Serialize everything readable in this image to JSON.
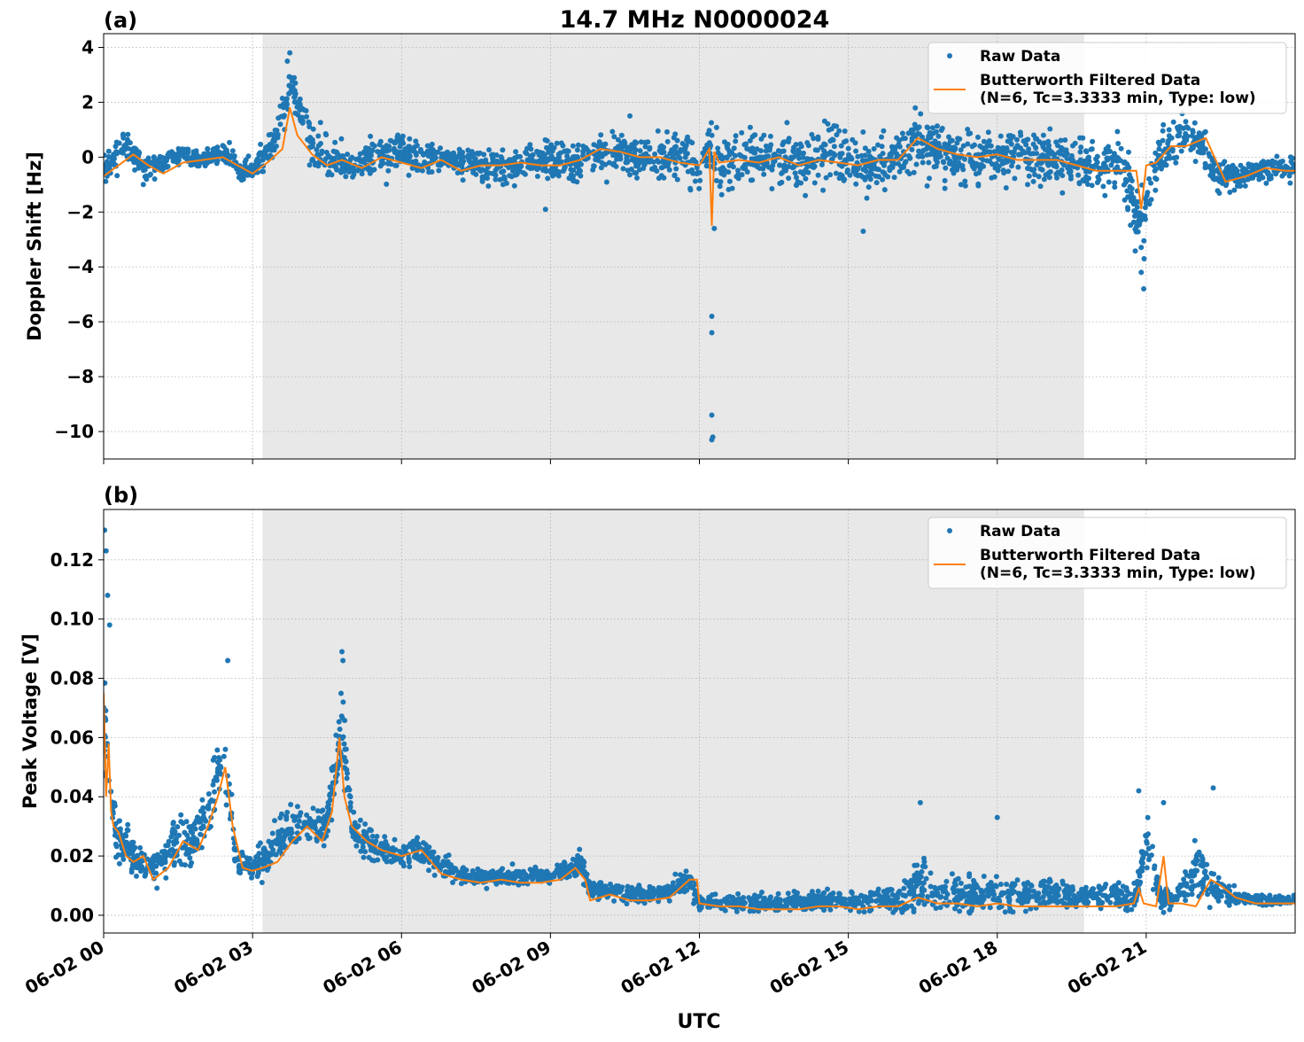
{
  "figure": {
    "title": "14.7 MHz N0000024",
    "xlabel": "UTC"
  },
  "colors": {
    "raw": "#1f77b4",
    "filtered": "#ff7f0e",
    "night_shade": "#e8e8e8",
    "grid": "#b0b0b0"
  },
  "chart_data": [
    {
      "type": "scatter",
      "panel_label": "(a)",
      "ylabel": "Doppler Shift [Hz]",
      "xlim": [
        0,
        24
      ],
      "ylim": [
        -11,
        4.5
      ],
      "yticks": [
        4,
        2,
        0,
        -2,
        -4,
        -6,
        -8,
        -10
      ],
      "ytick_labels": [
        "4",
        "2",
        "0",
        "−2",
        "−4",
        "−6",
        "−8",
        "−10"
      ],
      "xticks": [
        0,
        3,
        6,
        9,
        12,
        15,
        18,
        21
      ],
      "xtick_labels": [
        "06-02 00",
        "06-02 03",
        "06-02 06",
        "06-02 09",
        "06-02 12",
        "06-02 15",
        "06-02 18",
        "06-02 21"
      ],
      "shaded_interval_hours": [
        3.2,
        19.75
      ],
      "grid": true,
      "legend_position": "top-right",
      "series": [
        {
          "name": "Raw Data",
          "style": "points",
          "x": [
            0,
            0.4,
            0.8,
            1.2,
            1.6,
            2.0,
            2.4,
            2.8,
            3.0,
            3.4,
            3.8,
            4.2,
            4.6,
            5.0,
            5.5,
            6.0,
            6.5,
            7.0,
            7.5,
            8.0,
            8.5,
            9.0,
            9.5,
            10.0,
            10.5,
            11.0,
            11.5,
            12.0,
            12.2,
            12.5,
            13.0,
            13.5,
            14.0,
            14.5,
            15.0,
            15.5,
            16.0,
            16.4,
            17.0,
            17.5,
            18.0,
            18.5,
            19.0,
            19.5,
            20.0,
            20.5,
            20.9,
            21.2,
            21.6,
            22.0,
            22.4,
            22.8,
            23.2,
            23.6,
            24.0
          ],
          "y": [
            -0.6,
            0.6,
            -0.4,
            -0.2,
            0.1,
            -0.1,
            0.2,
            -0.6,
            -0.4,
            0.4,
            2.6,
            0.4,
            -0.1,
            -0.3,
            0.0,
            0.2,
            -0.2,
            -0.1,
            -0.3,
            -0.4,
            -0.2,
            -0.1,
            -0.3,
            0.2,
            0.1,
            -0.1,
            0.1,
            -0.2,
            0.2,
            -0.3,
            0.0,
            -0.1,
            -0.2,
            0.1,
            -0.1,
            -0.2,
            0.0,
            0.6,
            0.1,
            0.0,
            -0.1,
            0.1,
            0.0,
            -0.2,
            -0.4,
            -0.3,
            -2.5,
            -0.2,
            0.7,
            0.6,
            -0.6,
            -0.7,
            -0.5,
            -0.4,
            -0.5
          ],
          "spread": [
            0.5,
            0.6,
            0.4,
            0.4,
            0.4,
            0.3,
            0.4,
            0.5,
            0.5,
            0.7,
            1.0,
            0.8,
            0.7,
            0.7,
            0.7,
            0.7,
            0.6,
            0.6,
            0.6,
            0.7,
            0.7,
            0.7,
            0.7,
            0.8,
            0.8,
            0.8,
            0.9,
            1.0,
            1.0,
            1.0,
            1.0,
            1.0,
            1.0,
            1.0,
            1.0,
            1.0,
            1.0,
            1.0,
            1.0,
            1.0,
            1.0,
            1.0,
            1.0,
            1.0,
            1.0,
            1.0,
            1.5,
            0.9,
            0.9,
            0.8,
            0.6,
            0.5,
            0.5,
            0.5,
            0.5
          ],
          "outliers": [
            {
              "x": 3.75,
              "y": 3.8
            },
            {
              "x": 3.7,
              "y": 3.5
            },
            {
              "x": 20.95,
              "y": -4.8
            },
            {
              "x": 20.9,
              "y": -4.2
            },
            {
              "x": 12.25,
              "y": -5.8
            },
            {
              "x": 12.25,
              "y": -6.4
            },
            {
              "x": 12.25,
              "y": -9.4
            },
            {
              "x": 12.27,
              "y": -10.2
            },
            {
              "x": 12.25,
              "y": -10.3
            },
            {
              "x": 12.3,
              "y": -2.6
            },
            {
              "x": 15.3,
              "y": -2.7
            },
            {
              "x": 8.9,
              "y": -1.9
            },
            {
              "x": 10.6,
              "y": 1.5
            },
            {
              "x": 21.5,
              "y": 2.3
            }
          ]
        },
        {
          "name": "Butterworth Filtered Data\n(N=6, Tc=3.3333 min, Type: low)",
          "style": "line",
          "x": [
            0,
            0.3,
            0.6,
            0.9,
            1.2,
            1.6,
            2.0,
            2.4,
            2.8,
            3.0,
            3.3,
            3.6,
            3.75,
            3.9,
            4.2,
            4.5,
            4.8,
            5.2,
            5.6,
            6.0,
            6.4,
            6.8,
            7.2,
            7.6,
            8.0,
            8.4,
            8.8,
            9.2,
            9.6,
            10.0,
            10.4,
            10.8,
            11.2,
            11.6,
            12.0,
            12.2,
            12.25,
            12.3,
            12.4,
            12.8,
            13.2,
            13.6,
            14.0,
            14.4,
            14.8,
            15.2,
            15.6,
            16.0,
            16.4,
            16.8,
            17.2,
            17.6,
            18.0,
            18.4,
            18.8,
            19.2,
            19.6,
            20.0,
            20.4,
            20.8,
            20.9,
            21.0,
            21.2,
            21.5,
            21.8,
            22.2,
            22.6,
            23.0,
            23.4,
            23.8,
            24.0
          ],
          "y": [
            -0.7,
            -0.3,
            0.1,
            -0.3,
            -0.6,
            -0.2,
            -0.1,
            0.0,
            -0.4,
            -0.6,
            -0.2,
            0.3,
            1.8,
            0.8,
            0.1,
            -0.3,
            -0.1,
            -0.4,
            0.0,
            -0.2,
            -0.4,
            -0.1,
            -0.5,
            -0.3,
            -0.3,
            -0.2,
            -0.3,
            -0.3,
            -0.1,
            0.3,
            0.2,
            0.0,
            0.0,
            -0.2,
            -0.3,
            0.3,
            -2.5,
            0.2,
            -0.2,
            -0.1,
            -0.2,
            0.0,
            -0.3,
            -0.1,
            -0.2,
            -0.3,
            -0.1,
            -0.1,
            0.7,
            0.3,
            0.1,
            0.0,
            0.1,
            -0.1,
            -0.1,
            -0.1,
            -0.3,
            -0.5,
            -0.5,
            -0.5,
            -1.9,
            -0.3,
            -0.2,
            0.4,
            0.4,
            0.7,
            -0.9,
            -0.7,
            -0.4,
            -0.5,
            -0.5
          ]
        }
      ]
    },
    {
      "type": "scatter",
      "panel_label": "(b)",
      "ylabel": "Peak Voltage [V]",
      "xlim": [
        0,
        24
      ],
      "ylim": [
        -0.006,
        0.137
      ],
      "yticks": [
        0.12,
        0.1,
        0.08,
        0.06,
        0.04,
        0.02,
        0.0
      ],
      "ytick_labels": [
        "0.12",
        "0.10",
        "0.08",
        "0.06",
        "0.04",
        "0.02",
        "0.00"
      ],
      "xticks": [
        0,
        3,
        6,
        9,
        12,
        15,
        18,
        21
      ],
      "xtick_labels": [
        "06-02 00",
        "06-02 03",
        "06-02 06",
        "06-02 09",
        "06-02 12",
        "06-02 15",
        "06-02 18",
        "06-02 21"
      ],
      "shaded_interval_hours": [
        3.2,
        19.75
      ],
      "grid": true,
      "legend_position": "top-right",
      "series": [
        {
          "name": "Raw Data",
          "style": "points",
          "x": [
            0,
            0.15,
            0.3,
            0.6,
            0.9,
            1.2,
            1.5,
            1.8,
            2.1,
            2.4,
            2.7,
            3.0,
            3.3,
            3.6,
            3.9,
            4.2,
            4.5,
            4.8,
            5.0,
            5.3,
            5.7,
            6.0,
            6.4,
            6.8,
            7.2,
            7.6,
            8.0,
            8.4,
            8.8,
            9.2,
            9.6,
            9.8,
            10.2,
            10.6,
            11.0,
            11.4,
            11.8,
            12.0,
            12.4,
            12.8,
            13.2,
            13.6,
            14.0,
            14.4,
            14.8,
            15.2,
            15.6,
            16.0,
            16.4,
            16.8,
            17.2,
            17.6,
            18.0,
            18.4,
            18.8,
            19.2,
            19.6,
            20.0,
            20.4,
            20.8,
            21.0,
            21.3,
            21.6,
            22.0,
            22.4,
            22.8,
            23.2,
            23.6,
            24.0
          ],
          "y": [
            0.07,
            0.035,
            0.026,
            0.02,
            0.016,
            0.02,
            0.026,
            0.025,
            0.033,
            0.055,
            0.018,
            0.016,
            0.02,
            0.028,
            0.03,
            0.03,
            0.03,
            0.065,
            0.03,
            0.025,
            0.022,
            0.02,
            0.022,
            0.017,
            0.014,
            0.013,
            0.013,
            0.013,
            0.013,
            0.014,
            0.018,
            0.008,
            0.008,
            0.007,
            0.007,
            0.008,
            0.012,
            0.004,
            0.004,
            0.004,
            0.004,
            0.004,
            0.004,
            0.005,
            0.005,
            0.005,
            0.006,
            0.005,
            0.012,
            0.007,
            0.007,
            0.007,
            0.007,
            0.007,
            0.007,
            0.007,
            0.006,
            0.006,
            0.007,
            0.006,
            0.025,
            0.006,
            0.006,
            0.015,
            0.008,
            0.006,
            0.005,
            0.005,
            0.005
          ],
          "spread": [
            0.02,
            0.012,
            0.008,
            0.006,
            0.005,
            0.008,
            0.009,
            0.009,
            0.01,
            0.015,
            0.005,
            0.005,
            0.007,
            0.008,
            0.008,
            0.008,
            0.008,
            0.015,
            0.008,
            0.006,
            0.005,
            0.005,
            0.005,
            0.004,
            0.003,
            0.003,
            0.003,
            0.003,
            0.003,
            0.003,
            0.004,
            0.003,
            0.003,
            0.003,
            0.003,
            0.003,
            0.004,
            0.003,
            0.003,
            0.003,
            0.003,
            0.003,
            0.003,
            0.003,
            0.003,
            0.003,
            0.004,
            0.004,
            0.01,
            0.006,
            0.006,
            0.006,
            0.006,
            0.006,
            0.005,
            0.005,
            0.004,
            0.004,
            0.005,
            0.004,
            0.01,
            0.004,
            0.004,
            0.01,
            0.005,
            0.003,
            0.002,
            0.002,
            0.002
          ],
          "outliers": [
            {
              "x": 0.02,
              "y": 0.13
            },
            {
              "x": 0.05,
              "y": 0.123
            },
            {
              "x": 0.08,
              "y": 0.108
            },
            {
              "x": 0.12,
              "y": 0.098
            },
            {
              "x": 2.5,
              "y": 0.086
            },
            {
              "x": 4.8,
              "y": 0.089
            },
            {
              "x": 4.82,
              "y": 0.086
            },
            {
              "x": 16.45,
              "y": 0.038
            },
            {
              "x": 18.0,
              "y": 0.033
            },
            {
              "x": 20.85,
              "y": 0.042
            },
            {
              "x": 21.35,
              "y": 0.038
            },
            {
              "x": 22.35,
              "y": 0.043
            }
          ]
        },
        {
          "name": "Butterworth Filtered Data\n(N=6, Tc=3.3333 min, Type: low)",
          "style": "line",
          "x": [
            0,
            0.05,
            0.1,
            0.15,
            0.2,
            0.3,
            0.45,
            0.6,
            0.8,
            1.0,
            1.3,
            1.6,
            1.9,
            2.1,
            2.3,
            2.45,
            2.6,
            2.8,
            3.0,
            3.2,
            3.5,
            3.8,
            4.1,
            4.4,
            4.6,
            4.75,
            4.85,
            5.0,
            5.3,
            5.6,
            6.0,
            6.4,
            6.8,
            7.2,
            7.6,
            8.0,
            8.4,
            8.8,
            9.2,
            9.5,
            9.7,
            9.8,
            10.2,
            10.6,
            11.0,
            11.4,
            11.8,
            11.95,
            12.0,
            12.4,
            12.8,
            13.2,
            13.6,
            14.0,
            14.4,
            14.8,
            15.2,
            15.6,
            16.0,
            16.4,
            16.8,
            17.2,
            17.6,
            18.0,
            18.4,
            18.8,
            19.2,
            19.6,
            20.0,
            20.4,
            20.75,
            20.85,
            20.95,
            21.2,
            21.35,
            21.45,
            21.7,
            22.0,
            22.3,
            22.5,
            22.8,
            23.2,
            23.6,
            24.0
          ],
          "y": [
            0.075,
            0.04,
            0.058,
            0.035,
            0.03,
            0.028,
            0.02,
            0.018,
            0.02,
            0.012,
            0.016,
            0.025,
            0.022,
            0.03,
            0.04,
            0.05,
            0.03,
            0.016,
            0.015,
            0.016,
            0.018,
            0.025,
            0.03,
            0.025,
            0.035,
            0.06,
            0.04,
            0.03,
            0.025,
            0.022,
            0.02,
            0.022,
            0.014,
            0.012,
            0.011,
            0.012,
            0.011,
            0.011,
            0.012,
            0.016,
            0.012,
            0.005,
            0.007,
            0.005,
            0.005,
            0.006,
            0.012,
            0.012,
            0.004,
            0.003,
            0.003,
            0.002,
            0.002,
            0.002,
            0.003,
            0.003,
            0.002,
            0.003,
            0.003,
            0.006,
            0.004,
            0.004,
            0.003,
            0.004,
            0.003,
            0.003,
            0.003,
            0.003,
            0.003,
            0.003,
            0.004,
            0.009,
            0.004,
            0.003,
            0.02,
            0.004,
            0.004,
            0.003,
            0.012,
            0.01,
            0.006,
            0.004,
            0.004,
            0.004
          ]
        }
      ]
    }
  ]
}
